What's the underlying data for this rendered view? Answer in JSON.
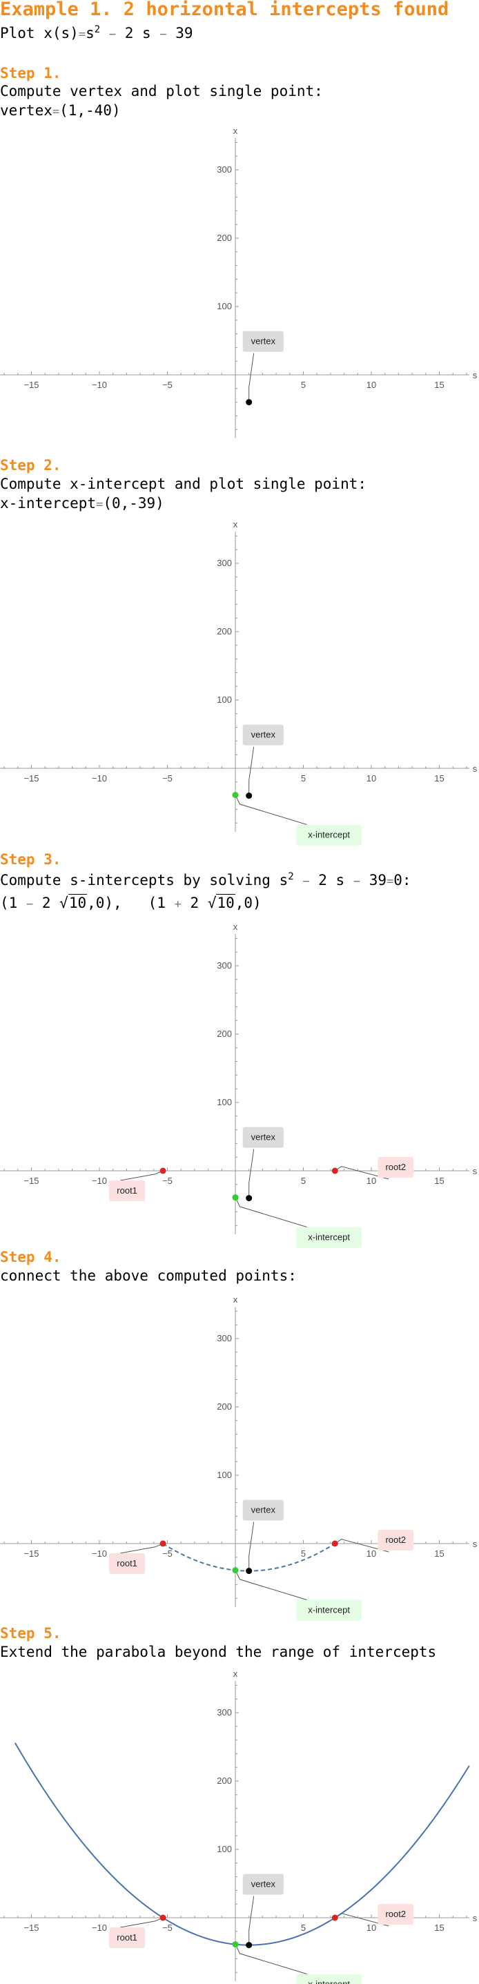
{
  "header": {
    "title": "Example 1. 2 horizontal intercepts found",
    "plot_label": "Plot",
    "function_lhs": "x(s)",
    "function_rhs_a": "s",
    "function_rhs_exp": "2",
    "function_rhs_b": "2 s",
    "function_rhs_c": "39"
  },
  "steps": [
    {
      "label": "Step 1.",
      "lines": [
        "Compute vertex and plot single point:",
        "vertex",
        "(1,-40)"
      ]
    },
    {
      "label": "Step 2.",
      "lines": [
        "Compute x-intercept and plot single point:",
        "x-intercept",
        "(0,-39)"
      ]
    },
    {
      "label": "Step 3.",
      "line1_pre": "Compute s-intercepts by solving s",
      "line1_exp": "2",
      "line1_post": "2 s",
      "line1_c": "39",
      "line1_eq": "0:",
      "root1_pre": "(1",
      "root1_coef": "2",
      "root1_rad": "10",
      "root1_post": ",0),",
      "root2_pre": "(1",
      "root2_coef": "2",
      "root2_rad": "10",
      "root2_post": ",0)"
    },
    {
      "label": "Step 4.",
      "lines": [
        "connect the above computed points:"
      ]
    },
    {
      "label": "Step 5.",
      "lines": [
        "Extend the parabola beyond the range of intercepts"
      ]
    }
  ],
  "chart_data": [
    {
      "type": "scatter",
      "xlabel": "s",
      "ylabel": "x",
      "xlim": [
        -17,
        17
      ],
      "ylim": [
        -90,
        345
      ],
      "xticks": [
        -15,
        -10,
        -5,
        5,
        10,
        15
      ],
      "yticks": [
        100,
        200,
        300
      ],
      "points": [
        {
          "name": "vertex",
          "x": 1,
          "y": -40,
          "color": "#000000",
          "label": "vertex",
          "label_bg": "#dcdcdc"
        }
      ]
    },
    {
      "type": "scatter",
      "xlabel": "s",
      "ylabel": "x",
      "xlim": [
        -17,
        17
      ],
      "ylim": [
        -90,
        345
      ],
      "xticks": [
        -15,
        -10,
        -5,
        5,
        10,
        15
      ],
      "yticks": [
        100,
        200,
        300
      ],
      "points": [
        {
          "name": "vertex",
          "x": 1,
          "y": -40,
          "color": "#000000",
          "label": "vertex",
          "label_bg": "#dcdcdc"
        },
        {
          "name": "x-intercept",
          "x": 0,
          "y": -39,
          "color": "#33cc33",
          "label": "x-intercept",
          "label_bg": "#e4fde4"
        }
      ]
    },
    {
      "type": "scatter",
      "xlabel": "s",
      "ylabel": "x",
      "xlim": [
        -17,
        17
      ],
      "ylim": [
        -90,
        345
      ],
      "xticks": [
        -15,
        -10,
        -5,
        5,
        10,
        15
      ],
      "yticks": [
        100,
        200,
        300
      ],
      "points": [
        {
          "name": "vertex",
          "x": 1,
          "y": -40,
          "color": "#000000",
          "label": "vertex",
          "label_bg": "#dcdcdc"
        },
        {
          "name": "x-intercept",
          "x": 0,
          "y": -39,
          "color": "#33cc33",
          "label": "x-intercept",
          "label_bg": "#e4fde4"
        },
        {
          "name": "root1",
          "x": -5.3246,
          "y": 0,
          "color": "#dd2222",
          "label": "root1",
          "label_bg": "#fde0e0"
        },
        {
          "name": "root2",
          "x": 7.3246,
          "y": 0,
          "color": "#dd2222",
          "label": "root2",
          "label_bg": "#fde0e0"
        }
      ]
    },
    {
      "type": "line",
      "curve": "dashed",
      "function": "s^2 - 2s - 39",
      "xlabel": "s",
      "ylabel": "x",
      "xlim": [
        -17,
        17
      ],
      "ylim": [
        -90,
        345
      ],
      "xticks": [
        -15,
        -10,
        -5,
        5,
        10,
        15
      ],
      "yticks": [
        100,
        200,
        300
      ],
      "curve_range": [
        -5.3246,
        7.3246
      ],
      "points": [
        {
          "name": "vertex",
          "x": 1,
          "y": -40,
          "color": "#000000",
          "label": "vertex",
          "label_bg": "#dcdcdc"
        },
        {
          "name": "x-intercept",
          "x": 0,
          "y": -39,
          "color": "#33cc33",
          "label": "x-intercept",
          "label_bg": "#e4fde4"
        },
        {
          "name": "root1",
          "x": -5.3246,
          "y": 0,
          "color": "#dd2222",
          "label": "root1",
          "label_bg": "#fde0e0"
        },
        {
          "name": "root2",
          "x": 7.3246,
          "y": 0,
          "color": "#dd2222",
          "label": "root2",
          "label_bg": "#fde0e0"
        }
      ]
    },
    {
      "type": "line",
      "curve": "solid",
      "function": "s^2 - 2s - 39",
      "xlabel": "s",
      "ylabel": "x",
      "xlim": [
        -17,
        17
      ],
      "ylim": [
        -90,
        345
      ],
      "xticks": [
        -15,
        -10,
        -5,
        5,
        10,
        15
      ],
      "yticks": [
        100,
        200,
        300
      ],
      "curve_range": [
        -16.2,
        17.2
      ],
      "points": [
        {
          "name": "vertex",
          "x": 1,
          "y": -40,
          "color": "#000000",
          "label": "vertex",
          "label_bg": "#dcdcdc"
        },
        {
          "name": "x-intercept",
          "x": 0,
          "y": -39,
          "color": "#33cc33",
          "label": "x-intercept",
          "label_bg": "#e4fde4"
        },
        {
          "name": "root1",
          "x": -5.3246,
          "y": 0,
          "color": "#dd2222",
          "label": "root1",
          "label_bg": "#fde0e0"
        },
        {
          "name": "root2",
          "x": 7.3246,
          "y": 0,
          "color": "#dd2222",
          "label": "root2",
          "label_bg": "#fde0e0"
        }
      ]
    }
  ]
}
